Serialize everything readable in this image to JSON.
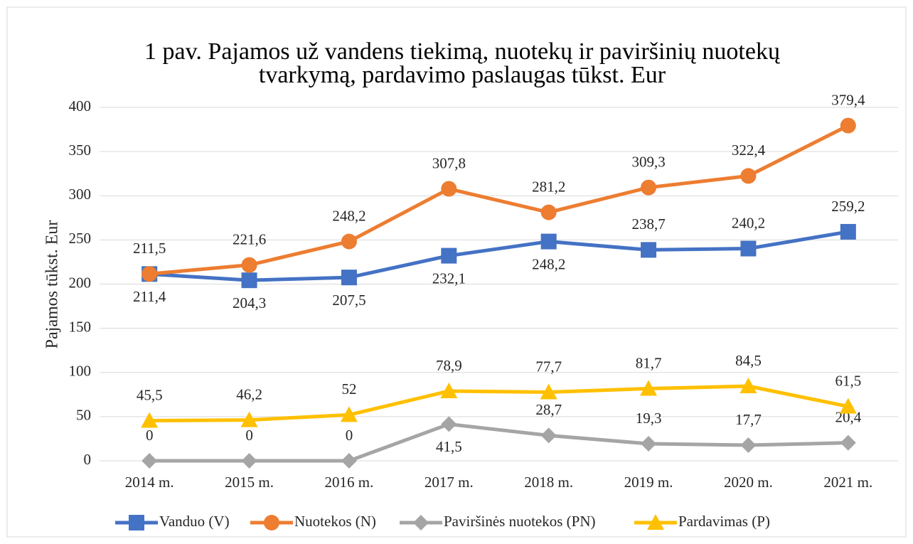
{
  "chart_data": {
    "type": "line",
    "title": [
      "1 pav. Pajamos už vandens tiekimą, nuotekų ir paviršinių nuotekų",
      "tvarkymą, pardavimo paslaugas tūkst. Eur"
    ],
    "ylabel": "Pajamos tūkst. Eur",
    "categories": [
      "2014 m.",
      "2015 m.",
      "2016 m.",
      "2017 m.",
      "2018 m.",
      "2019 m.",
      "2020 m.",
      "2021 m."
    ],
    "ylim": [
      0,
      400
    ],
    "yticks": [
      0,
      50,
      100,
      150,
      200,
      250,
      300,
      350,
      400
    ],
    "grid": true,
    "legend": "bottom",
    "series": [
      {
        "name": "Vanduo (V)",
        "color": "#4472c4",
        "values": [
          211.4,
          204.3,
          207.5,
          232.1,
          248.2,
          238.7,
          240.2,
          259.2
        ],
        "value_labels": [
          "211,4",
          "204,3",
          "207,5",
          "232,1",
          "248,2",
          "238,7",
          "240,2",
          "259,2"
        ]
      },
      {
        "name": "Nuotekos (N)",
        "color": "#ed7d31",
        "values": [
          211.5,
          221.6,
          248.2,
          307.8,
          281.2,
          309.3,
          322.4,
          379.4
        ],
        "value_labels": [
          "211,5",
          "221,6",
          "248,2",
          "307,8",
          "281,2",
          "309,3",
          "322,4",
          "379,4"
        ]
      },
      {
        "name": "Paviršinės nuotekos (PN)",
        "color": "#a5a5a5",
        "values": [
          0,
          0,
          0,
          41.5,
          28.7,
          19.3,
          17.7,
          20.4
        ],
        "value_labels": [
          "0",
          "0",
          "0",
          "41,5",
          "28,7",
          "19,3",
          "17,7",
          "20,4"
        ]
      },
      {
        "name": "Pardavimas (P)",
        "color": "#ffc000",
        "values": [
          45.5,
          46.2,
          52,
          78.9,
          77.7,
          81.7,
          84.5,
          61.5
        ],
        "value_labels": [
          "45,5",
          "46,2",
          "52",
          "78,9",
          "77,7",
          "81,7",
          "84,5",
          "61,5"
        ]
      }
    ]
  }
}
